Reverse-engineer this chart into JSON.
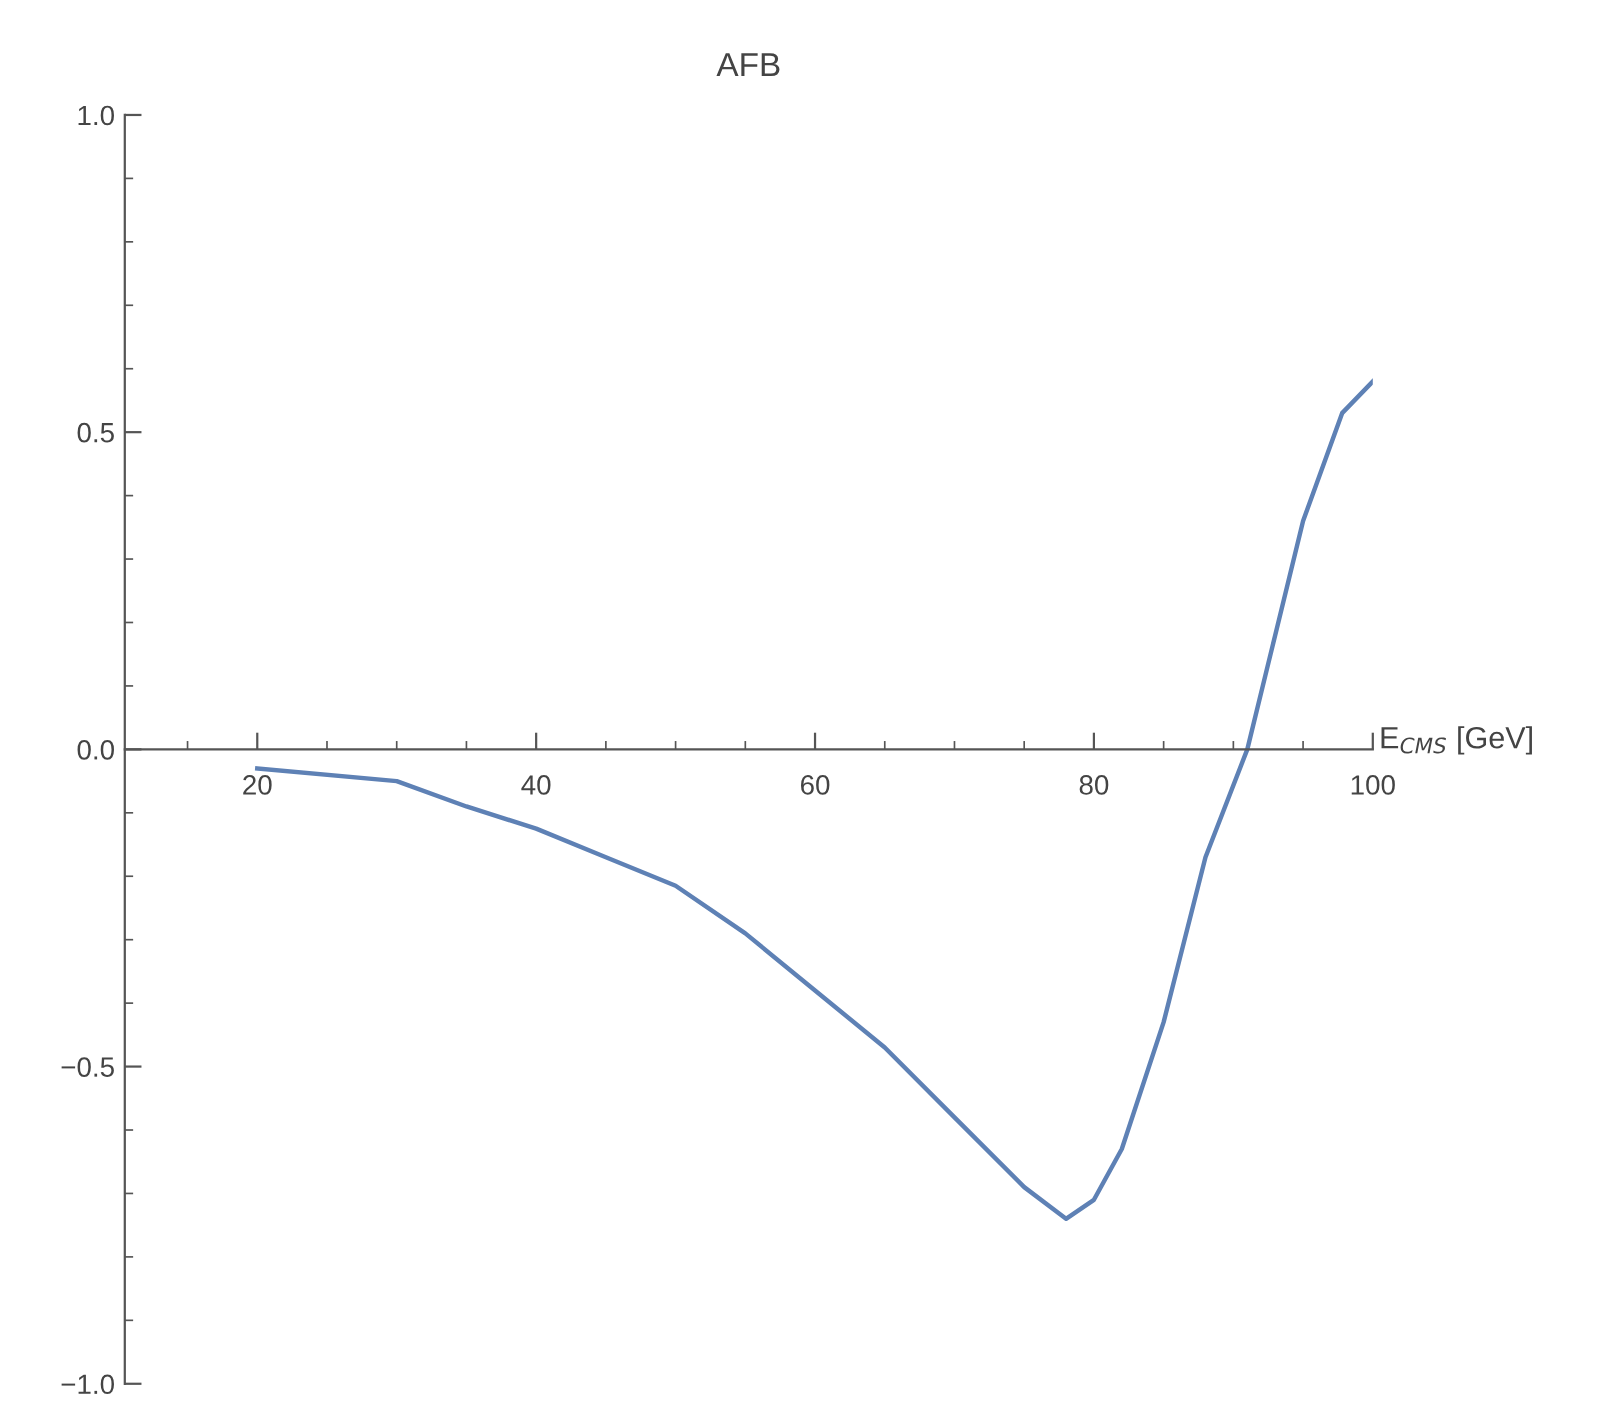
{
  "chart_data": {
    "type": "line",
    "title": "AFB",
    "xlabel": "E$_{CMS}$ [GeV]",
    "x": [
      20,
      30,
      35,
      40,
      45,
      50,
      55,
      60,
      65,
      70,
      75,
      78,
      80,
      82,
      85,
      88,
      91,
      93,
      95,
      97.8,
      100
    ],
    "series": [
      {
        "color": "#5e81b5",
        "values": [
          -0.03,
          -0.05,
          -0.09,
          -0.125,
          -0.17,
          -0.215,
          -0.29,
          -0.38,
          -0.47,
          -0.58,
          -0.69,
          -0.74,
          -0.71,
          -0.63,
          -0.43,
          -0.17,
          0.0,
          0.18,
          0.36,
          0.53,
          0.58
        ]
      }
    ],
    "xlim": [
      10.5,
      100
    ],
    "xticks": [
      20,
      40,
      60,
      80,
      100
    ],
    "ylim": [
      -1.0,
      1.0
    ],
    "yticks": [
      {
        "value": -1.0,
        "label": "−1.0"
      },
      {
        "value": -0.5,
        "label": "−0.5"
      },
      {
        "value": 0.0,
        "label": "0.0"
      },
      {
        "value": 0.5,
        "label": "0.5"
      },
      {
        "value": 1.0,
        "label": "1.0"
      }
    ],
    "grid": false,
    "legend": false,
    "marker": "none",
    "line_style": "solid"
  }
}
